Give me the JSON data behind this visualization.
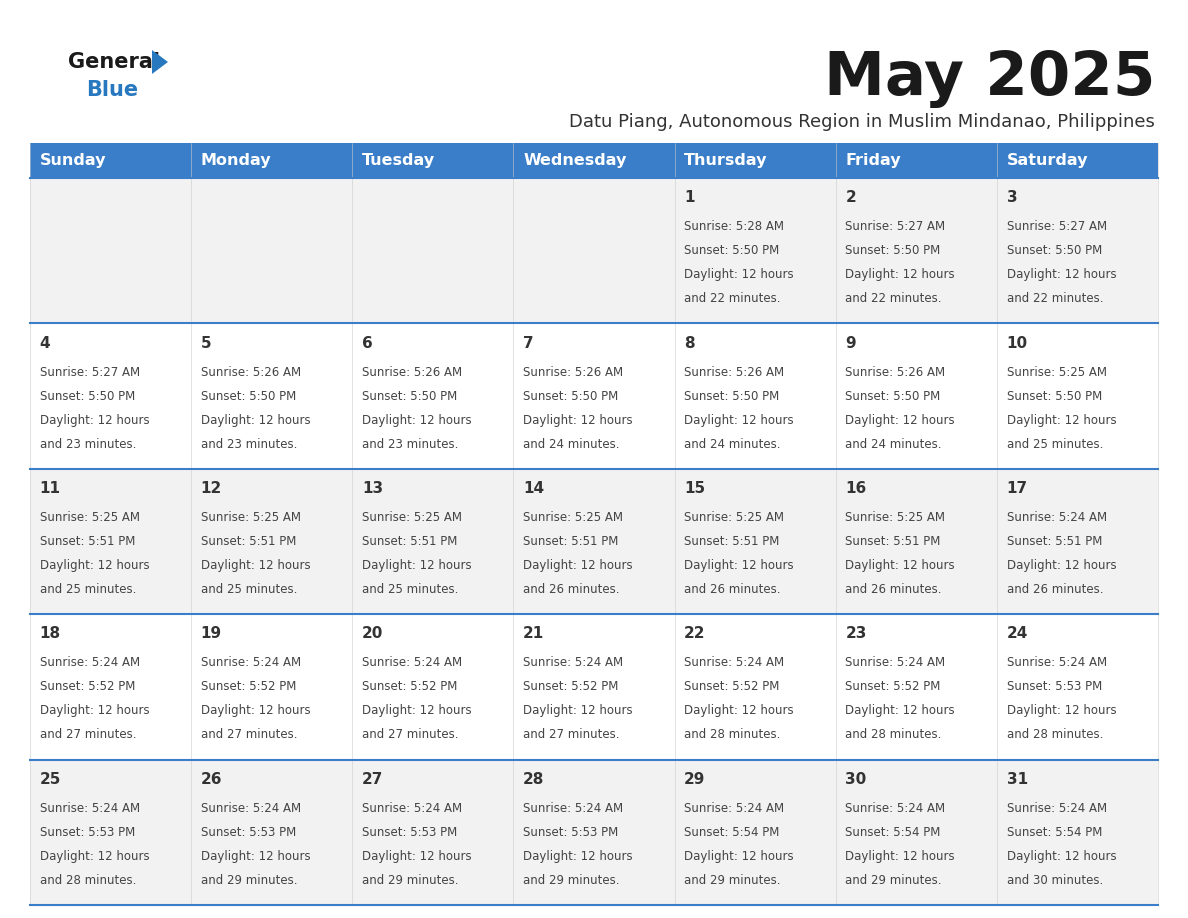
{
  "title": "May 2025",
  "subtitle": "Datu Piang, Autonomous Region in Muslim Mindanao, Philippines",
  "weekdays": [
    "Sunday",
    "Monday",
    "Tuesday",
    "Wednesday",
    "Thursday",
    "Friday",
    "Saturday"
  ],
  "header_bg": "#3A7DC9",
  "header_text": "#FFFFFF",
  "row0_bg": "#F2F2F2",
  "row1_bg": "#FFFFFF",
  "row2_bg": "#F2F2F2",
  "row3_bg": "#FFFFFF",
  "row4_bg": "#F2F2F2",
  "border_color": "#3A7DC9",
  "day_number_color": "#333333",
  "text_color": "#444444",
  "title_color": "#1a1a1a",
  "subtitle_color": "#333333",
  "logo_general_color": "#1a1a1a",
  "logo_blue_color": "#2878C0",
  "days": [
    {
      "day": 1,
      "col": 4,
      "row": 0,
      "sunrise": "5:28 AM",
      "sunset": "5:50 PM",
      "daylight_hours": 12,
      "daylight_minutes": 22
    },
    {
      "day": 2,
      "col": 5,
      "row": 0,
      "sunrise": "5:27 AM",
      "sunset": "5:50 PM",
      "daylight_hours": 12,
      "daylight_minutes": 22
    },
    {
      "day": 3,
      "col": 6,
      "row": 0,
      "sunrise": "5:27 AM",
      "sunset": "5:50 PM",
      "daylight_hours": 12,
      "daylight_minutes": 22
    },
    {
      "day": 4,
      "col": 0,
      "row": 1,
      "sunrise": "5:27 AM",
      "sunset": "5:50 PM",
      "daylight_hours": 12,
      "daylight_minutes": 23
    },
    {
      "day": 5,
      "col": 1,
      "row": 1,
      "sunrise": "5:26 AM",
      "sunset": "5:50 PM",
      "daylight_hours": 12,
      "daylight_minutes": 23
    },
    {
      "day": 6,
      "col": 2,
      "row": 1,
      "sunrise": "5:26 AM",
      "sunset": "5:50 PM",
      "daylight_hours": 12,
      "daylight_minutes": 23
    },
    {
      "day": 7,
      "col": 3,
      "row": 1,
      "sunrise": "5:26 AM",
      "sunset": "5:50 PM",
      "daylight_hours": 12,
      "daylight_minutes": 24
    },
    {
      "day": 8,
      "col": 4,
      "row": 1,
      "sunrise": "5:26 AM",
      "sunset": "5:50 PM",
      "daylight_hours": 12,
      "daylight_minutes": 24
    },
    {
      "day": 9,
      "col": 5,
      "row": 1,
      "sunrise": "5:26 AM",
      "sunset": "5:50 PM",
      "daylight_hours": 12,
      "daylight_minutes": 24
    },
    {
      "day": 10,
      "col": 6,
      "row": 1,
      "sunrise": "5:25 AM",
      "sunset": "5:50 PM",
      "daylight_hours": 12,
      "daylight_minutes": 25
    },
    {
      "day": 11,
      "col": 0,
      "row": 2,
      "sunrise": "5:25 AM",
      "sunset": "5:51 PM",
      "daylight_hours": 12,
      "daylight_minutes": 25
    },
    {
      "day": 12,
      "col": 1,
      "row": 2,
      "sunrise": "5:25 AM",
      "sunset": "5:51 PM",
      "daylight_hours": 12,
      "daylight_minutes": 25
    },
    {
      "day": 13,
      "col": 2,
      "row": 2,
      "sunrise": "5:25 AM",
      "sunset": "5:51 PM",
      "daylight_hours": 12,
      "daylight_minutes": 25
    },
    {
      "day": 14,
      "col": 3,
      "row": 2,
      "sunrise": "5:25 AM",
      "sunset": "5:51 PM",
      "daylight_hours": 12,
      "daylight_minutes": 26
    },
    {
      "day": 15,
      "col": 4,
      "row": 2,
      "sunrise": "5:25 AM",
      "sunset": "5:51 PM",
      "daylight_hours": 12,
      "daylight_minutes": 26
    },
    {
      "day": 16,
      "col": 5,
      "row": 2,
      "sunrise": "5:25 AM",
      "sunset": "5:51 PM",
      "daylight_hours": 12,
      "daylight_minutes": 26
    },
    {
      "day": 17,
      "col": 6,
      "row": 2,
      "sunrise": "5:24 AM",
      "sunset": "5:51 PM",
      "daylight_hours": 12,
      "daylight_minutes": 26
    },
    {
      "day": 18,
      "col": 0,
      "row": 3,
      "sunrise": "5:24 AM",
      "sunset": "5:52 PM",
      "daylight_hours": 12,
      "daylight_minutes": 27
    },
    {
      "day": 19,
      "col": 1,
      "row": 3,
      "sunrise": "5:24 AM",
      "sunset": "5:52 PM",
      "daylight_hours": 12,
      "daylight_minutes": 27
    },
    {
      "day": 20,
      "col": 2,
      "row": 3,
      "sunrise": "5:24 AM",
      "sunset": "5:52 PM",
      "daylight_hours": 12,
      "daylight_minutes": 27
    },
    {
      "day": 21,
      "col": 3,
      "row": 3,
      "sunrise": "5:24 AM",
      "sunset": "5:52 PM",
      "daylight_hours": 12,
      "daylight_minutes": 27
    },
    {
      "day": 22,
      "col": 4,
      "row": 3,
      "sunrise": "5:24 AM",
      "sunset": "5:52 PM",
      "daylight_hours": 12,
      "daylight_minutes": 28
    },
    {
      "day": 23,
      "col": 5,
      "row": 3,
      "sunrise": "5:24 AM",
      "sunset": "5:52 PM",
      "daylight_hours": 12,
      "daylight_minutes": 28
    },
    {
      "day": 24,
      "col": 6,
      "row": 3,
      "sunrise": "5:24 AM",
      "sunset": "5:53 PM",
      "daylight_hours": 12,
      "daylight_minutes": 28
    },
    {
      "day": 25,
      "col": 0,
      "row": 4,
      "sunrise": "5:24 AM",
      "sunset": "5:53 PM",
      "daylight_hours": 12,
      "daylight_minutes": 28
    },
    {
      "day": 26,
      "col": 1,
      "row": 4,
      "sunrise": "5:24 AM",
      "sunset": "5:53 PM",
      "daylight_hours": 12,
      "daylight_minutes": 29
    },
    {
      "day": 27,
      "col": 2,
      "row": 4,
      "sunrise": "5:24 AM",
      "sunset": "5:53 PM",
      "daylight_hours": 12,
      "daylight_minutes": 29
    },
    {
      "day": 28,
      "col": 3,
      "row": 4,
      "sunrise": "5:24 AM",
      "sunset": "5:53 PM",
      "daylight_hours": 12,
      "daylight_minutes": 29
    },
    {
      "day": 29,
      "col": 4,
      "row": 4,
      "sunrise": "5:24 AM",
      "sunset": "5:54 PM",
      "daylight_hours": 12,
      "daylight_minutes": 29
    },
    {
      "day": 30,
      "col": 5,
      "row": 4,
      "sunrise": "5:24 AM",
      "sunset": "5:54 PM",
      "daylight_hours": 12,
      "daylight_minutes": 29
    },
    {
      "day": 31,
      "col": 6,
      "row": 4,
      "sunrise": "5:24 AM",
      "sunset": "5:54 PM",
      "daylight_hours": 12,
      "daylight_minutes": 30
    }
  ]
}
